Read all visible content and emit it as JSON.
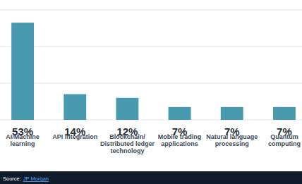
{
  "chart_data": {
    "type": "bar",
    "categories": [
      "AI/Machine learning",
      "API integration",
      "Blockchain/ Distributed ledger technology",
      "Mobile trading applications",
      "Natural language processing",
      "Quantum computing"
    ],
    "values": [
      53,
      14,
      12,
      7,
      7,
      7
    ],
    "value_labels": [
      "53%",
      "14%",
      "12%",
      "7%",
      "7%",
      "7%"
    ],
    "data_labels": true,
    "color": "#4a9aaf",
    "ylim": [
      0,
      60
    ],
    "yticks": [
      0,
      20,
      40,
      60
    ],
    "grid": true,
    "tick_labels": "x",
    "source": {
      "label": "Source:",
      "link": "JP Morgan"
    }
  }
}
